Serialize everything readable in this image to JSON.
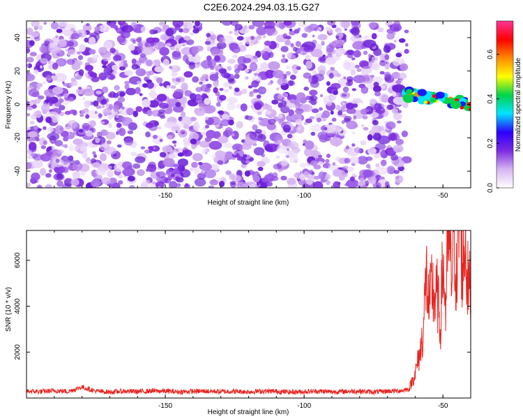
{
  "title": "C2E6.2024.294.03.15.G27",
  "chart_data": [
    {
      "type": "heatmap",
      "xlabel": "Height of straight line (km)",
      "ylabel": "Frequency (Hz)",
      "xlim": [
        -200,
        -40
      ],
      "ylim": [
        -50,
        50
      ],
      "xticks": [
        -150,
        -100,
        -50
      ],
      "yticks": [
        -40,
        -20,
        0,
        20,
        40
      ],
      "colorbar": {
        "label": "Normalized spectral amplitude",
        "range": [
          0,
          0.75
        ],
        "ticks": [
          0.0,
          0.2,
          0.4,
          0.6
        ],
        "colors": [
          "#ffffff",
          "#d6b4f2",
          "#7d2be0",
          "#2b00ff",
          "#00e5ff",
          "#00d24a",
          "#ffff00",
          "#ff8800",
          "#ff0000",
          "#ff3399"
        ]
      },
      "noise_region": {
        "x": [
          -200,
          -63
        ],
        "amplitude": [
          0.0,
          0.12
        ]
      },
      "signal_band": {
        "x": [
          -63,
          -40
        ],
        "frequency_center": [
          6,
          0
        ],
        "frequency_width": 6,
        "peak_amplitude": 0.7
      }
    },
    {
      "type": "line",
      "xlabel": "Height of straight line (km)",
      "ylabel": "SNR (10 * v/v)",
      "xlim": [
        -200,
        -40
      ],
      "ylim": [
        0,
        7300
      ],
      "xticks": [
        -150,
        -100,
        -50
      ],
      "yticks": [
        2000,
        4000,
        6000
      ],
      "series": [
        {
          "color": "#e8231e",
          "x": [
            -200,
            -195,
            -190,
            -185,
            -180,
            -175,
            -170,
            -165,
            -160,
            -155,
            -150,
            -145,
            -140,
            -135,
            -130,
            -125,
            -120,
            -115,
            -110,
            -105,
            -100,
            -95,
            -90,
            -85,
            -80,
            -75,
            -70,
            -65,
            -62,
            -60,
            -58,
            -57,
            -56,
            -55,
            -54,
            -53,
            -52,
            -51,
            -50,
            -49,
            -48,
            -47,
            -46,
            -45,
            -44,
            -43,
            -42,
            -41,
            -40
          ],
          "y": [
            300,
            280,
            320,
            290,
            480,
            300,
            260,
            300,
            280,
            310,
            300,
            270,
            290,
            300,
            280,
            290,
            270,
            300,
            290,
            260,
            280,
            300,
            270,
            290,
            300,
            260,
            300,
            320,
            400,
            900,
            1800,
            2600,
            4600,
            3200,
            4200,
            3600,
            3800,
            2500,
            5000,
            3300,
            6100,
            4300,
            6500,
            3900,
            7300,
            4800,
            5900,
            4200,
            3900
          ]
        }
      ]
    }
  ]
}
